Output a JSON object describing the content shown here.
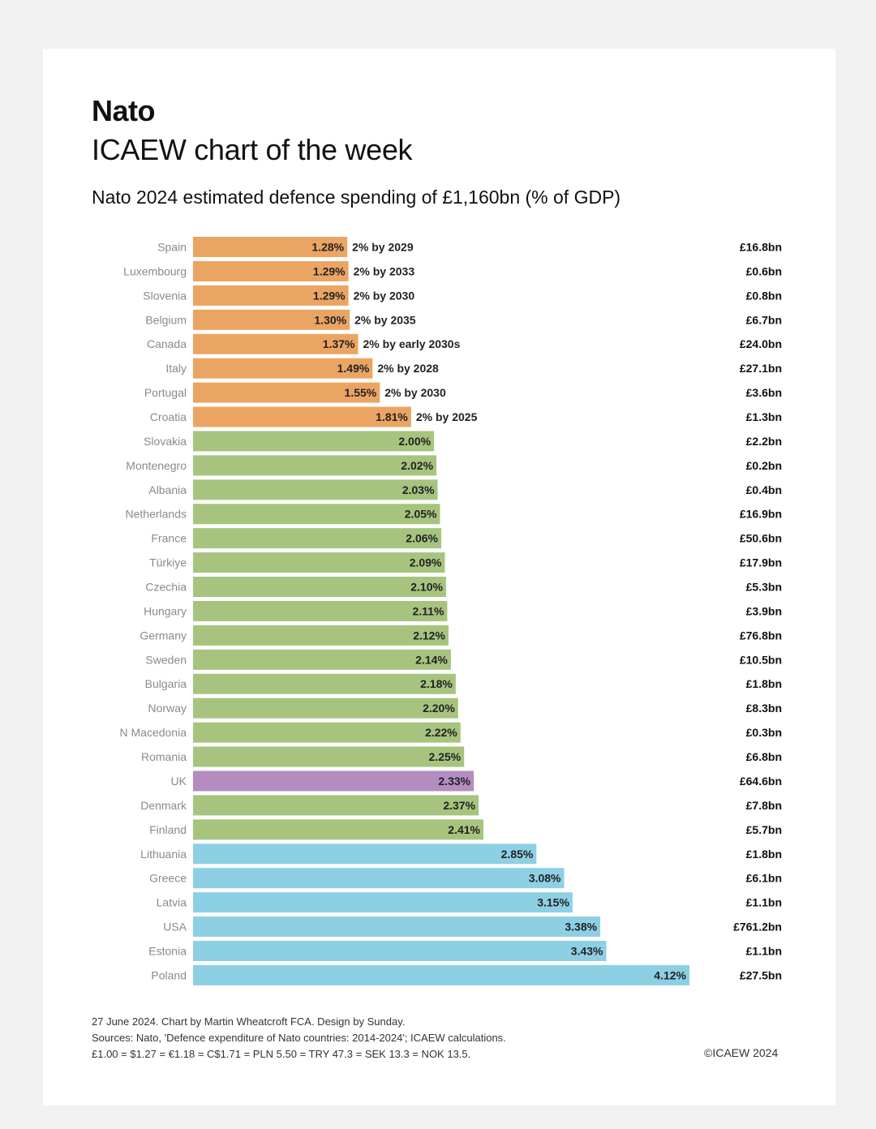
{
  "header": {
    "title": "Nato",
    "subtitle": "ICAEW chart of the week"
  },
  "footer": {
    "line1": "27 June 2024.  Chart by Martin Wheatcroft FCA. Design by Sunday.",
    "line2": "Sources: Nato, 'Defence expenditure of Nato countries: 2014-2024'; ICAEW calculations.",
    "line3": "£1.00 = $1.27 = €1.18 = C$1.71 = PLN 5.50 = TRY 47.3 = SEK 13.3 = NOK 13.5.",
    "copyright": "©ICAEW 2024"
  },
  "colors": {
    "below_target": "#eba562",
    "at_target": "#a6c47e",
    "uk": "#b48cc0",
    "high": "#8dd0e4"
  },
  "chart_data": {
    "type": "bar",
    "orientation": "horizontal",
    "title": "Nato 2024 estimated defence spending of £1,160bn (% of GDP)",
    "xlim": [
      0,
      4.12
    ],
    "grid": false,
    "categories": [
      "Spain",
      "Luxembourg",
      "Slovenia",
      "Belgium",
      "Canada",
      "Italy",
      "Portugal",
      "Croatia",
      "Slovakia",
      "Montenegro",
      "Albania",
      "Netherlands",
      "France",
      "Türkiye",
      "Czechia",
      "Hungary",
      "Germany",
      "Sweden",
      "Bulgaria",
      "Norway",
      "N Macedonia",
      "Romania",
      "UK",
      "Denmark",
      "Finland",
      "Lithuania",
      "Greece",
      "Latvia",
      "USA",
      "Estonia",
      "Poland"
    ],
    "values": [
      1.28,
      1.29,
      1.29,
      1.3,
      1.37,
      1.49,
      1.55,
      1.81,
      2.0,
      2.02,
      2.03,
      2.05,
      2.06,
      2.09,
      2.1,
      2.11,
      2.12,
      2.14,
      2.18,
      2.2,
      2.22,
      2.25,
      2.33,
      2.37,
      2.41,
      2.85,
      3.08,
      3.15,
      3.38,
      3.43,
      4.12
    ],
    "value_labels": [
      "1.28%",
      "1.29%",
      "1.29%",
      "1.30%",
      "1.37%",
      "1.49%",
      "1.55%",
      "1.81%",
      "2.00%",
      "2.02%",
      "2.03%",
      "2.05%",
      "2.06%",
      "2.09%",
      "2.10%",
      "2.11%",
      "2.12%",
      "2.14%",
      "2.18%",
      "2.20%",
      "2.22%",
      "2.25%",
      "2.33%",
      "2.37%",
      "2.41%",
      "2.85%",
      "3.08%",
      "3.15%",
      "3.38%",
      "3.43%",
      "4.12%"
    ],
    "annotations": [
      "2% by 2029",
      "2% by 2033",
      "2% by 2030",
      "2% by 2035",
      "2% by early 2030s",
      "2% by 2028",
      "2% by 2030",
      "2% by 2025",
      "",
      "",
      "",
      "",
      "",
      "",
      "",
      "",
      "",
      "",
      "",
      "",
      "",
      "",
      "",
      "",
      "",
      "",
      "",
      "",
      "",
      "",
      ""
    ],
    "spending": [
      "£16.8bn",
      "£0.6bn",
      "£0.8bn",
      "£6.7bn",
      "£24.0bn",
      "£27.1bn",
      "£3.6bn",
      "£1.3bn",
      "£2.2bn",
      "£0.2bn",
      "£0.4bn",
      "£16.9bn",
      "£50.6bn",
      "£17.9bn",
      "£5.3bn",
      "£3.9bn",
      "£76.8bn",
      "£10.5bn",
      "£1.8bn",
      "£8.3bn",
      "£0.3bn",
      "£6.8bn",
      "£64.6bn",
      "£7.8bn",
      "£5.7bn",
      "£1.8bn",
      "£6.1bn",
      "£1.1bn",
      "£761.2bn",
      "£1.1bn",
      "£27.5bn"
    ],
    "groups": [
      "below_target",
      "below_target",
      "below_target",
      "below_target",
      "below_target",
      "below_target",
      "below_target",
      "below_target",
      "at_target",
      "at_target",
      "at_target",
      "at_target",
      "at_target",
      "at_target",
      "at_target",
      "at_target",
      "at_target",
      "at_target",
      "at_target",
      "at_target",
      "at_target",
      "at_target",
      "uk",
      "at_target",
      "at_target",
      "high",
      "high",
      "high",
      "high",
      "high",
      "high"
    ]
  }
}
